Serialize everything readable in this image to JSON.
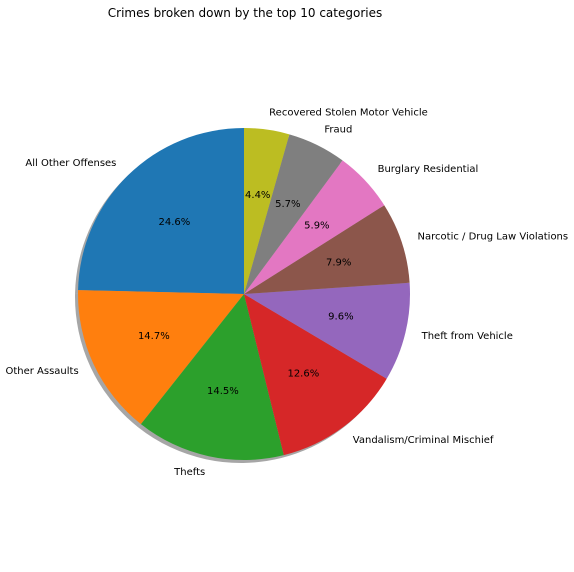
{
  "chart_data": {
    "type": "pie",
    "title": "Crimes broken down by the top 10 categories",
    "start_angle_deg": 90,
    "direction": "counterclockwise",
    "shadow": true,
    "slices": [
      {
        "label": "All Other Offenses",
        "value": 24.6,
        "pct_label": "24.6%",
        "color": "#1f77b4"
      },
      {
        "label": "Other Assaults",
        "value": 14.7,
        "pct_label": "14.7%",
        "color": "#ff7f0e"
      },
      {
        "label": "Thefts",
        "value": 14.5,
        "pct_label": "14.5%",
        "color": "#2ca02c"
      },
      {
        "label": "Vandalism/Criminal Mischief",
        "value": 12.6,
        "pct_label": "12.6%",
        "color": "#d62728"
      },
      {
        "label": "Theft from Vehicle",
        "value": 9.6,
        "pct_label": "9.6%",
        "color": "#9467bd"
      },
      {
        "label": "Narcotic / Drug Law Violations",
        "value": 7.9,
        "pct_label": "7.9%",
        "color": "#8c564b"
      },
      {
        "label": "Burglary Residential",
        "value": 5.9,
        "pct_label": "5.9%",
        "color": "#e377c2"
      },
      {
        "label": "Fraud",
        "value": 5.7,
        "pct_label": "5.7%",
        "color": "#7f7f7f"
      },
      {
        "label": "Recovered Stolen Motor Vehicle",
        "value": 4.4,
        "pct_label": "4.4%",
        "color": "#bcbd22"
      }
    ]
  }
}
